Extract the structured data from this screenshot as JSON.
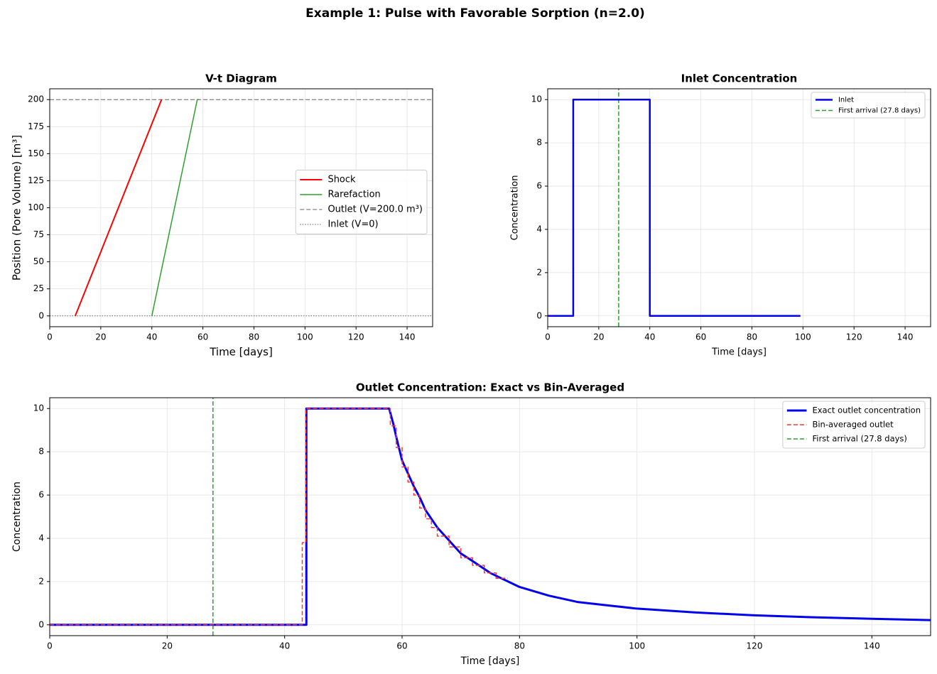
{
  "title": "Example 1: Pulse with Favorable Sorption (n=2.0)",
  "chart_data": [
    {
      "type": "line",
      "title": "V-t Diagram",
      "xlabel": "Time [days]",
      "ylabel": "Position (Pore Volume) [m³]",
      "xlim": [
        0,
        150
      ],
      "ylim": [
        -10,
        210
      ],
      "xticks": [
        0,
        20,
        40,
        60,
        80,
        100,
        120,
        140
      ],
      "yticks": [
        0,
        25,
        50,
        75,
        100,
        125,
        150,
        175,
        200
      ],
      "grid": true,
      "legend": "center right",
      "series": [
        {
          "name": "Shock",
          "color": "#ff0000",
          "linestyle": "solid",
          "linewidth": 2,
          "x": [
            10,
            43.8
          ],
          "values": [
            0,
            200
          ]
        },
        {
          "name": "Rarefaction",
          "color": "#2ca02c",
          "linestyle": "solid",
          "linewidth": 1.5,
          "x": [
            40,
            57.8,
            58.5
          ],
          "values": [
            0,
            200,
            200
          ]
        }
      ],
      "hlines": [
        {
          "name": "Outlet (V=200.0 m³)",
          "color": "#666666",
          "linestyle": "dashed",
          "y": 200
        },
        {
          "name": "Inlet (V=0)",
          "color": "#666666",
          "linestyle": "dotted",
          "y": 0
        }
      ]
    },
    {
      "type": "line",
      "title": "Inlet Concentration",
      "xlabel": "Time [days]",
      "ylabel": "Concentration",
      "xlim": [
        0,
        150
      ],
      "ylim": [
        -0.5,
        10.5
      ],
      "xticks": [
        0,
        20,
        40,
        60,
        80,
        100,
        120,
        140
      ],
      "yticks": [
        0,
        2,
        4,
        6,
        8,
        10
      ],
      "grid": true,
      "legend": "upper right",
      "series": [
        {
          "name": "Inlet",
          "color": "#0000ee",
          "linestyle": "solid",
          "linewidth": 2.5,
          "x": [
            0,
            10,
            10,
            40,
            40,
            99
          ],
          "values": [
            0,
            0,
            10,
            10,
            0,
            0
          ]
        }
      ],
      "vlines": [
        {
          "name": "First arrival (27.8 days)",
          "color": "#2ca02c",
          "linestyle": "dashed",
          "x": 27.8
        }
      ]
    },
    {
      "type": "line",
      "title": "Outlet Concentration: Exact vs Bin-Averaged",
      "xlabel": "Time [days]",
      "ylabel": "Concentration",
      "xlim": [
        0,
        150
      ],
      "ylim": [
        -0.5,
        10.5
      ],
      "xticks": [
        0,
        20,
        40,
        60,
        80,
        100,
        120,
        140
      ],
      "yticks": [
        0,
        2,
        4,
        6,
        8,
        10
      ],
      "grid": true,
      "legend": "upper right",
      "series": [
        {
          "name": "Exact outlet concentration",
          "color": "#0000ee",
          "linestyle": "solid",
          "linewidth": 3,
          "x": [
            0,
            43.7,
            43.7,
            57.8,
            58.5,
            59,
            60,
            61,
            62,
            63,
            64,
            65,
            66,
            68,
            70,
            72,
            75,
            80,
            85,
            90,
            95,
            100,
            110,
            120,
            130,
            140,
            150
          ],
          "values": [
            0,
            0,
            10,
            10,
            9.3,
            8.7,
            7.6,
            7.0,
            6.4,
            5.9,
            5.3,
            4.9,
            4.5,
            3.9,
            3.3,
            2.95,
            2.4,
            1.75,
            1.35,
            1.05,
            0.9,
            0.75,
            0.57,
            0.44,
            0.35,
            0.28,
            0.22
          ]
        },
        {
          "name": "Bin-averaged outlet",
          "color": "#ff3333",
          "linestyle": "dashed",
          "linewidth": 1.5,
          "x": [
            0,
            43,
            43,
            43.6,
            43.6,
            58,
            58,
            59,
            59,
            60,
            60,
            61,
            61,
            62,
            62,
            63,
            63,
            64,
            64,
            65,
            65,
            66,
            66,
            68,
            68,
            70,
            70,
            72,
            72,
            74,
            74,
            76,
            76,
            78
          ],
          "values": [
            0,
            0,
            3.8,
            3.8,
            10,
            10,
            9.2,
            9.2,
            8.2,
            8.2,
            7.3,
            7.3,
            6.6,
            6.6,
            6.0,
            6.0,
            5.4,
            5.4,
            4.9,
            4.9,
            4.5,
            4.5,
            4.1,
            4.1,
            3.6,
            3.6,
            3.1,
            3.1,
            2.75,
            2.75,
            2.4,
            2.4,
            2.15,
            2.15
          ]
        }
      ],
      "vlines": [
        {
          "name": "First arrival (27.8 days)",
          "color": "#2ca02c",
          "linestyle": "dashed",
          "x": 27.8
        }
      ]
    }
  ]
}
